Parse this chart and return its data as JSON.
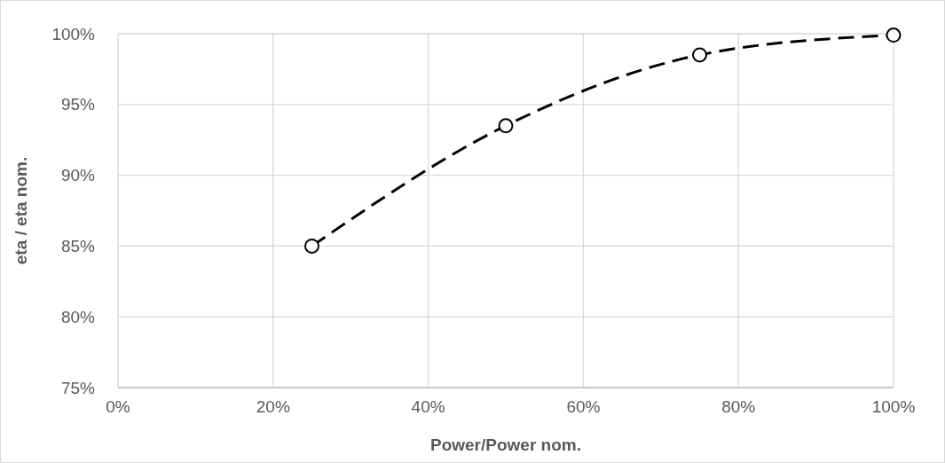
{
  "chart_data": {
    "type": "line",
    "xlabel": "Power/Power nom.",
    "ylabel": "eta / eta nom.",
    "x": [
      25,
      50,
      75,
      100
    ],
    "series": [
      {
        "color": "#000000",
        "values": [
          85,
          93.5,
          98.5,
          99.9
        ]
      }
    ],
    "xlim": [
      0,
      100
    ],
    "xticks": [
      {
        "value": 0,
        "label": "0%"
      },
      {
        "value": 20,
        "label": "20%"
      },
      {
        "value": 40,
        "label": "40%"
      },
      {
        "value": 60,
        "label": "60%"
      },
      {
        "value": 80,
        "label": "80%"
      },
      {
        "value": 100,
        "label": "100%"
      }
    ],
    "ylim": [
      75,
      100
    ],
    "yticks": [
      {
        "value": 75,
        "label": "75%"
      },
      {
        "value": 80,
        "label": "80%"
      },
      {
        "value": 85,
        "label": "85%"
      },
      {
        "value": 90,
        "label": "90%"
      },
      {
        "value": 95,
        "label": "95%"
      },
      {
        "value": 100,
        "label": "100%"
      }
    ],
    "grid": true,
    "marker": "circle",
    "line_style": "dashed"
  }
}
